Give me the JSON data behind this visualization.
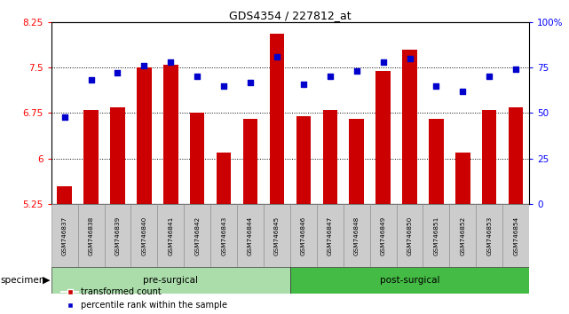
{
  "title": "GDS4354 / 227812_at",
  "samples": [
    "GSM746837",
    "GSM746838",
    "GSM746839",
    "GSM746840",
    "GSM746841",
    "GSM746842",
    "GSM746843",
    "GSM746844",
    "GSM746845",
    "GSM746846",
    "GSM746847",
    "GSM746848",
    "GSM746849",
    "GSM746850",
    "GSM746851",
    "GSM746852",
    "GSM746853",
    "GSM746854"
  ],
  "bar_values": [
    5.55,
    6.8,
    6.85,
    7.5,
    7.55,
    6.75,
    6.1,
    6.65,
    8.05,
    6.7,
    6.8,
    6.65,
    7.45,
    7.8,
    6.65,
    6.1,
    6.8,
    6.85
  ],
  "percentile_values": [
    48,
    68,
    72,
    76,
    78,
    70,
    65,
    67,
    81,
    66,
    70,
    73,
    78,
    80,
    65,
    62,
    70,
    74
  ],
  "bar_color": "#cc0000",
  "dot_color": "#0000cc",
  "ylim_left": [
    5.25,
    8.25
  ],
  "ylim_right": [
    0,
    100
  ],
  "yticks_left": [
    5.25,
    6.0,
    6.75,
    7.5,
    8.25
  ],
  "yticks_right": [
    0,
    25,
    50,
    75,
    100
  ],
  "ytick_labels_left": [
    "5.25",
    "6",
    "6.75",
    "7.5",
    "8.25"
  ],
  "ytick_labels_right": [
    "0",
    "25",
    "50",
    "75",
    "100%"
  ],
  "groups": [
    {
      "label": "pre-surgical",
      "start": 0,
      "end": 9,
      "color": "#aaddaa"
    },
    {
      "label": "post-surgical",
      "start": 9,
      "end": 18,
      "color": "#44bb44"
    }
  ],
  "sample_box_color": "#cccccc",
  "bar_width": 0.55,
  "grid_lines": [
    6.0,
    6.75,
    7.5
  ],
  "legend_labels": [
    "transformed count",
    "percentile rank within the sample"
  ]
}
